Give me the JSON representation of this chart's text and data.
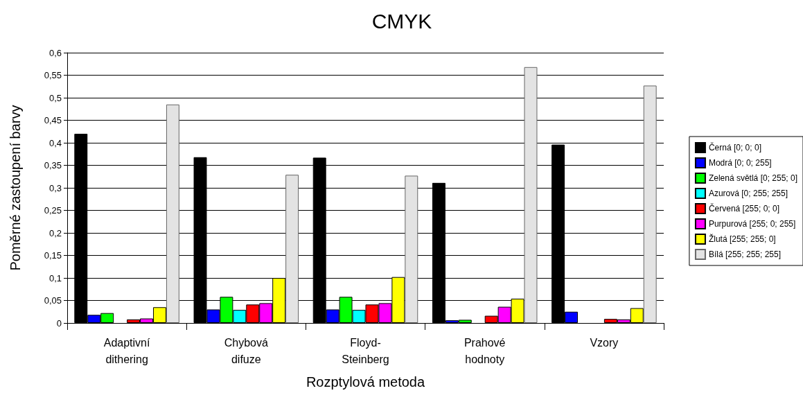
{
  "chart_data": {
    "type": "bar",
    "title": "CMYK",
    "xlabel": "Rozptylová metoda",
    "ylabel": "Poměrné zastoupení barvy",
    "categories": [
      "Adaptivní\ndithering",
      "Chybová\ndifuze",
      "Floyd-\nSteinberg",
      "Prahové\nhodnoty",
      "Vzory"
    ],
    "series": [
      {
        "name": "Černá [0; 0; 0]",
        "color": "#000000",
        "values": [
          0.42,
          0.368,
          0.367,
          0.311,
          0.396
        ]
      },
      {
        "name": "Modrá [0; 0; 255]",
        "color": "#0000ff",
        "values": [
          0.018,
          0.03,
          0.03,
          0.006,
          0.025
        ]
      },
      {
        "name": "Zelená světlá [0; 255; 0]",
        "color": "#00ff00",
        "values": [
          0.022,
          0.058,
          0.058,
          0.007,
          0
        ]
      },
      {
        "name": "Azurová [0; 255; 255]",
        "color": "#00ffff",
        "values": [
          0,
          0.029,
          0.029,
          0,
          0
        ]
      },
      {
        "name": "Červená [255; 0; 0]",
        "color": "#ff0000",
        "values": [
          0.008,
          0.041,
          0.041,
          0.016,
          0.009
        ]
      },
      {
        "name": "Purpurová [255; 0; 255]",
        "color": "#ff00ff",
        "values": [
          0.01,
          0.044,
          0.044,
          0.036,
          0.008
        ]
      },
      {
        "name": "Žlutá [255; 255; 0]",
        "color": "#ffff00",
        "values": [
          0.035,
          0.1,
          0.102,
          0.054,
          0.033
        ]
      },
      {
        "name": "Bílá [255; 255; 255]",
        "color": "#e3e3e3",
        "values": [
          0.485,
          0.329,
          0.327,
          0.568,
          0.527
        ]
      }
    ],
    "ylim": [
      0,
      0.6
    ],
    "yticks": [
      {
        "value": 0,
        "label": "0"
      },
      {
        "value": 0.05,
        "label": "0,05"
      },
      {
        "value": 0.1,
        "label": "0,1"
      },
      {
        "value": 0.15,
        "label": "0,15"
      },
      {
        "value": 0.2,
        "label": "0,2"
      },
      {
        "value": 0.25,
        "label": "0,25"
      },
      {
        "value": 0.3,
        "label": "0,3"
      },
      {
        "value": 0.35,
        "label": "0,35"
      },
      {
        "value": 0.4,
        "label": "0,4"
      },
      {
        "value": 0.45,
        "label": "0,45"
      },
      {
        "value": 0.5,
        "label": "0,5"
      },
      {
        "value": 0.55,
        "label": "0,55"
      },
      {
        "value": 0.6,
        "label": "0,6"
      }
    ],
    "grid": "y",
    "legend": "right"
  }
}
